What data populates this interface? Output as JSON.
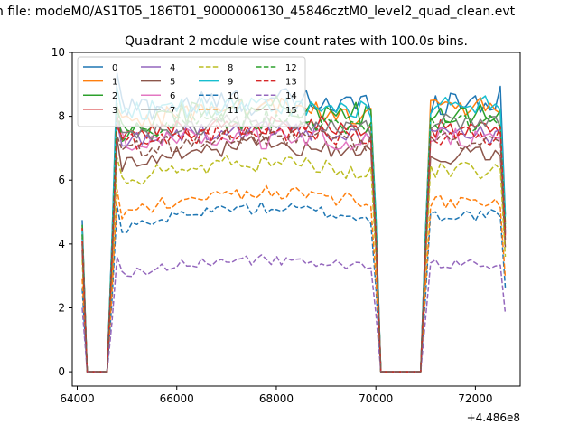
{
  "chart_data": {
    "type": "line",
    "suptitle": "n file: modeM0/AS1T05_186T01_9000006130_45846cztM0_level2_quad_clean.evt",
    "title": "Quadrant 2 module wise count rates with 100.0s bins.",
    "xlabel": "",
    "ylabel": "",
    "x_offset_label": "+4.486e8",
    "xlim": [
      63900,
      72900
    ],
    "ylim": [
      -0.45,
      10.0
    ],
    "xticks": [
      64000,
      66000,
      68000,
      70000,
      72000
    ],
    "xtick_labels": [
      "64000",
      "66000",
      "68000",
      "70000",
      "72000"
    ],
    "yticks": [
      0,
      2,
      4,
      6,
      8,
      10
    ],
    "ytick_labels": [
      "0",
      "2",
      "4",
      "6",
      "8",
      "10"
    ],
    "grid": false,
    "legend_position": "top-left",
    "legend_columns": 4,
    "x": [
      64100,
      64200,
      64300,
      64400,
      64500,
      64600,
      64700,
      64800,
      64900,
      65000,
      65100,
      65200,
      65300,
      65400,
      65500,
      65600,
      65700,
      65800,
      65900,
      66000,
      66100,
      66200,
      66300,
      66400,
      66500,
      66600,
      66700,
      66800,
      66900,
      67000,
      67100,
      67200,
      67300,
      67400,
      67500,
      67600,
      67700,
      67800,
      67900,
      68000,
      68100,
      68200,
      68300,
      68400,
      68500,
      68600,
      68700,
      68800,
      68900,
      69000,
      69100,
      69200,
      69300,
      69400,
      69500,
      69600,
      69700,
      69800,
      69900,
      70000,
      70100,
      70200,
      70300,
      70400,
      70500,
      70600,
      70700,
      70800,
      70900,
      71000,
      71100,
      71200,
      71300,
      71400,
      71500,
      71600,
      71700,
      71800,
      71900,
      72000,
      72100,
      72200,
      72300,
      72400,
      72500,
      72600
    ],
    "gap_indices": [
      1,
      2,
      3,
      4,
      5,
      60,
      61,
      62,
      63,
      64,
      65,
      66,
      67,
      68
    ],
    "edge_indices": [
      0,
      6,
      59,
      69,
      85
    ],
    "edge_fractions": [
      0.58,
      0.52,
      0.6,
      0.55,
      0.6
    ],
    "series": [
      {
        "name": "0",
        "color": "#1f77b4",
        "dash": "solid",
        "base": 8.2,
        "fall": 8.5,
        "trend": 0.2,
        "noise": 0.45,
        "start": 4.75,
        "peak": 9.35
      },
      {
        "name": "1",
        "color": "#ff7f0e",
        "dash": "solid",
        "base": 7.8,
        "fall": 8.3,
        "trend": 0.35,
        "noise": 0.35,
        "start": 4.5,
        "peak": 8.3
      },
      {
        "name": "2",
        "color": "#2ca02c",
        "dash": "solid",
        "base": 7.7,
        "fall": 8.1,
        "trend": 0.45,
        "noise": 0.38,
        "start": 4.6,
        "peak": 8.2
      },
      {
        "name": "3",
        "color": "#d62728",
        "dash": "solid",
        "base": 7.3,
        "fall": 7.6,
        "trend": 0.35,
        "noise": 0.33,
        "start": 4.5,
        "peak": 8.0
      },
      {
        "name": "4",
        "color": "#9467bd",
        "dash": "solid",
        "base": 7.2,
        "fall": 7.4,
        "trend": 0.3,
        "noise": 0.3,
        "start": 4.2,
        "peak": 7.8
      },
      {
        "name": "5",
        "color": "#8c564b",
        "dash": "solid",
        "base": 6.5,
        "fall": 6.8,
        "trend": 0.45,
        "noise": 0.3,
        "start": 3.8,
        "peak": 7.3
      },
      {
        "name": "6",
        "color": "#e377c2",
        "dash": "solid",
        "base": 7.2,
        "fall": 7.3,
        "trend": 0.1,
        "noise": 0.35,
        "start": 4.3,
        "peak": 7.8
      },
      {
        "name": "7",
        "color": "#7f7f7f",
        "dash": "solid",
        "base": 7.3,
        "fall": 7.8,
        "trend": 0.4,
        "noise": 0.3,
        "start": 4.1,
        "peak": 7.9
      },
      {
        "name": "8",
        "color": "#bcbd22",
        "dash": "dashed",
        "base": 6.0,
        "fall": 6.3,
        "trend": 0.4,
        "noise": 0.3,
        "start": 3.5,
        "peak": 6.7
      },
      {
        "name": "9",
        "color": "#17becf",
        "dash": "solid",
        "base": 8.1,
        "fall": 8.4,
        "trend": 0.15,
        "noise": 0.32,
        "start": 4.4,
        "peak": 8.9
      },
      {
        "name": "10",
        "color": "#1f77b4",
        "dash": "dashed",
        "base": 4.4,
        "fall": 4.9,
        "trend": 0.55,
        "noise": 0.2,
        "start": 2.6,
        "peak": 5.2
      },
      {
        "name": "11",
        "color": "#ff7f0e",
        "dash": "dashed",
        "base": 4.9,
        "fall": 5.3,
        "trend": 0.55,
        "noise": 0.22,
        "start": 2.9,
        "peak": 5.7
      },
      {
        "name": "12",
        "color": "#2ca02c",
        "dash": "dashed",
        "base": 7.5,
        "fall": 7.8,
        "trend": 0.3,
        "noise": 0.32,
        "start": 4.3,
        "peak": 8.4
      },
      {
        "name": "13",
        "color": "#d62728",
        "dash": "dashed",
        "base": 7.1,
        "fall": 7.4,
        "trend": 0.3,
        "noise": 0.3,
        "start": 4.1,
        "peak": 7.7
      },
      {
        "name": "14",
        "color": "#9467bd",
        "dash": "dashed",
        "base": 3.05,
        "fall": 3.35,
        "trend": 0.35,
        "noise": 0.17,
        "start": 2.0,
        "peak": 3.6
      },
      {
        "name": "15",
        "color": "#8c564b",
        "dash": "dashed",
        "base": 6.9,
        "fall": 7.2,
        "trend": 0.35,
        "noise": 0.3,
        "start": 4.0,
        "peak": 7.4
      }
    ]
  }
}
